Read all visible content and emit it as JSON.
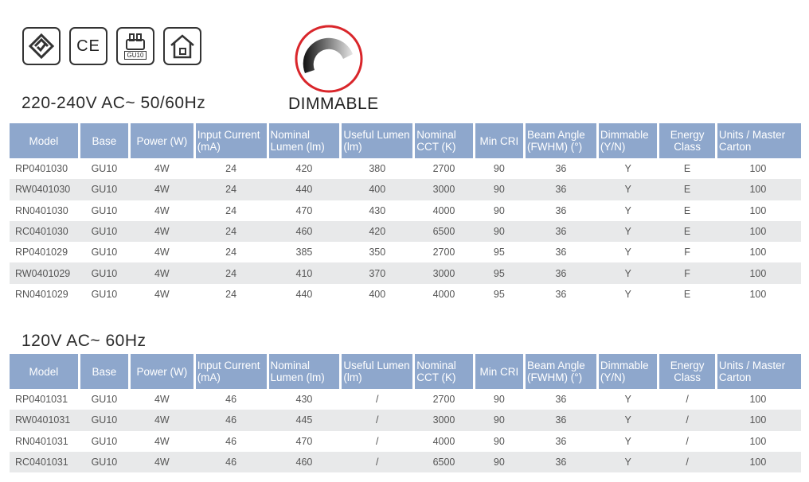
{
  "certifications": [
    {
      "icon": "rcm-mark-icon"
    },
    {
      "icon": "ce-mark-icon",
      "label": "CE"
    },
    {
      "icon": "gu10-base-icon",
      "label": "GU10"
    },
    {
      "icon": "indoor-home-icon"
    }
  ],
  "dimmable": {
    "label": "DIMMABLE",
    "accent": "#d9262b"
  },
  "header_color": "#8ea7cc",
  "stripe_color": "#e8e9ea",
  "sections": [
    {
      "title": "220-240V AC~ 50/60Hz",
      "columns": [
        "Model",
        "Base",
        "Power (W)",
        "Input Current (mA)",
        "Nominal Lumen (lm)",
        "Useful Lumen (lm)",
        "Nominal CCT (K)",
        "Min CRI",
        "Beam Angle (FWHM) (°)",
        "Dimmable (Y/N)",
        "Energy Class",
        "Units / Master Carton"
      ],
      "rows": [
        [
          "RP0401030",
          "GU10",
          "4W",
          "24",
          "420",
          "380",
          "2700",
          "90",
          "36",
          "Y",
          "E",
          "100"
        ],
        [
          "RW0401030",
          "GU10",
          "4W",
          "24",
          "440",
          "400",
          "3000",
          "90",
          "36",
          "Y",
          "E",
          "100"
        ],
        [
          "RN0401030",
          "GU10",
          "4W",
          "24",
          "470",
          "430",
          "4000",
          "90",
          "36",
          "Y",
          "E",
          "100"
        ],
        [
          "RC0401030",
          "GU10",
          "4W",
          "24",
          "460",
          "420",
          "6500",
          "90",
          "36",
          "Y",
          "E",
          "100"
        ],
        [
          "RP0401029",
          "GU10",
          "4W",
          "24",
          "385",
          "350",
          "2700",
          "95",
          "36",
          "Y",
          "F",
          "100"
        ],
        [
          "RW0401029",
          "GU10",
          "4W",
          "24",
          "410",
          "370",
          "3000",
          "95",
          "36",
          "Y",
          "F",
          "100"
        ],
        [
          "RN0401029",
          "GU10",
          "4W",
          "24",
          "440",
          "400",
          "4000",
          "95",
          "36",
          "Y",
          "E",
          "100"
        ]
      ]
    },
    {
      "title": "120V AC~ 60Hz",
      "columns": [
        "Model",
        "Base",
        "Power (W)",
        "Input Current (mA)",
        "Nominal Lumen (lm)",
        "Useful Lumen (lm)",
        "Nominal CCT (K)",
        "Min CRI",
        "Beam Angle (FWHM) (°)",
        "Dimmable (Y/N)",
        "Energy Class",
        "Units / Master Carton"
      ],
      "rows": [
        [
          "RP0401031",
          "GU10",
          "4W",
          "46",
          "430",
          "/",
          "2700",
          "90",
          "36",
          "Y",
          "/",
          "100"
        ],
        [
          "RW0401031",
          "GU10",
          "4W",
          "46",
          "445",
          "/",
          "3000",
          "90",
          "36",
          "Y",
          "/",
          "100"
        ],
        [
          "RN0401031",
          "GU10",
          "4W",
          "46",
          "470",
          "/",
          "4000",
          "90",
          "36",
          "Y",
          "/",
          "100"
        ],
        [
          "RC0401031",
          "GU10",
          "4W",
          "46",
          "460",
          "/",
          "6500",
          "90",
          "36",
          "Y",
          "/",
          "100"
        ]
      ]
    }
  ]
}
